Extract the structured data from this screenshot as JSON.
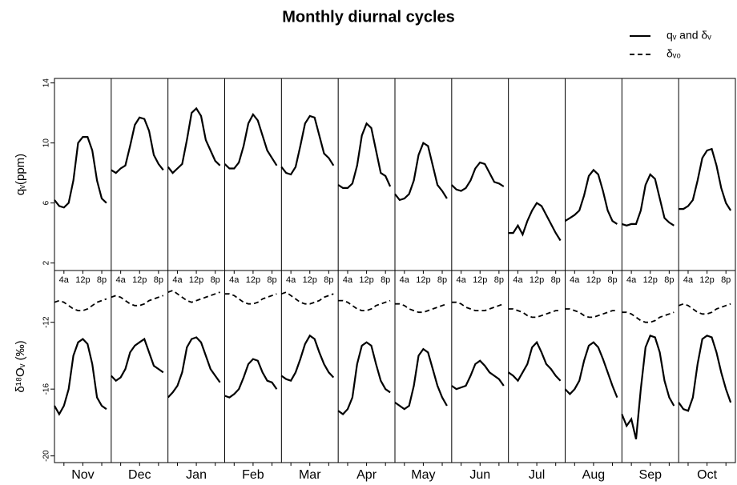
{
  "chart_data": {
    "type": "line",
    "title": "Monthly diurnal cycles",
    "legend": [
      "qᵥ and δᵥ",
      "δᵥ₀"
    ],
    "top_ylabel": "qᵥ(ppm)",
    "bottom_ylabel": "δ¹⁸Oᵥ (‰)",
    "x": [
      0,
      2,
      4,
      6,
      8,
      10,
      12,
      14,
      16,
      18,
      20,
      22
    ],
    "xlim": [
      0,
      24
    ],
    "xticks": [
      {
        "value": 4,
        "label": "4a"
      },
      {
        "value": 12,
        "label": "12p"
      },
      {
        "value": 20,
        "label": "8p"
      }
    ],
    "top_ylim": [
      1.5,
      14.3
    ],
    "top_yticks": [
      2,
      6,
      10,
      14
    ],
    "bottom_ylim": [
      -20.4,
      -8.9
    ],
    "bottom_yticks": [
      -20,
      -16,
      -12
    ],
    "color": "#000000",
    "panels": [
      {
        "month": "Nov",
        "qv": [
          6.2,
          5.8,
          5.7,
          6.0,
          7.5,
          10.0,
          10.4,
          10.4,
          9.5,
          7.5,
          6.3,
          6.0
        ],
        "d18O": [
          -17.0,
          -17.5,
          -17.0,
          -16.0,
          -14.0,
          -13.2,
          -13.0,
          -13.3,
          -14.5,
          -16.5,
          -17.0,
          -17.2
        ],
        "d18O_v0": [
          -10.8,
          -10.7,
          -10.8,
          -11.0,
          -11.2,
          -11.3,
          -11.3,
          -11.2,
          -11.0,
          -10.8,
          -10.7,
          -10.6
        ]
      },
      {
        "month": "Dec",
        "qv": [
          8.2,
          8.0,
          8.3,
          8.5,
          9.8,
          11.2,
          11.7,
          11.6,
          10.8,
          9.2,
          8.6,
          8.2
        ],
        "d18O": [
          -15.2,
          -15.5,
          -15.3,
          -14.8,
          -13.8,
          -13.4,
          -13.2,
          -13.0,
          -13.8,
          -14.6,
          -14.8,
          -15.0
        ],
        "d18O_v0": [
          -10.5,
          -10.4,
          -10.5,
          -10.7,
          -10.9,
          -11.0,
          -11.0,
          -10.9,
          -10.7,
          -10.6,
          -10.5,
          -10.4
        ]
      },
      {
        "month": "Jan",
        "qv": [
          8.4,
          8.0,
          8.3,
          8.6,
          10.2,
          12.0,
          12.3,
          11.8,
          10.2,
          9.5,
          8.8,
          8.5
        ],
        "d18O": [
          -16.5,
          -16.2,
          -15.8,
          -15.0,
          -13.5,
          -13.0,
          -12.9,
          -13.2,
          -14.0,
          -14.8,
          -15.2,
          -15.6
        ],
        "d18O_v0": [
          -10.2,
          -10.1,
          -10.3,
          -10.5,
          -10.7,
          -10.8,
          -10.7,
          -10.6,
          -10.5,
          -10.4,
          -10.3,
          -10.2
        ]
      },
      {
        "month": "Feb",
        "qv": [
          8.6,
          8.3,
          8.3,
          8.7,
          9.8,
          11.3,
          11.9,
          11.5,
          10.5,
          9.5,
          9.0,
          8.5
        ],
        "d18O": [
          -16.4,
          -16.5,
          -16.3,
          -16.0,
          -15.3,
          -14.5,
          -14.2,
          -14.3,
          -15.0,
          -15.5,
          -15.6,
          -16.0
        ],
        "d18O_v0": [
          -10.3,
          -10.3,
          -10.4,
          -10.6,
          -10.8,
          -10.9,
          -10.9,
          -10.8,
          -10.6,
          -10.5,
          -10.4,
          -10.3
        ]
      },
      {
        "month": "Mar",
        "qv": [
          8.4,
          8.0,
          7.9,
          8.4,
          9.8,
          11.3,
          11.8,
          11.7,
          10.5,
          9.3,
          9.0,
          8.5
        ],
        "d18O": [
          -15.2,
          -15.4,
          -15.5,
          -15.0,
          -14.2,
          -13.3,
          -12.8,
          -13.0,
          -13.8,
          -14.5,
          -15.0,
          -15.3
        ],
        "d18O_v0": [
          -10.3,
          -10.2,
          -10.4,
          -10.6,
          -10.8,
          -10.9,
          -10.9,
          -10.8,
          -10.7,
          -10.5,
          -10.4,
          -10.3
        ]
      },
      {
        "month": "Apr",
        "qv": [
          7.2,
          7.0,
          7.0,
          7.3,
          8.5,
          10.5,
          11.3,
          11.0,
          9.5,
          8.0,
          7.8,
          7.1
        ],
        "d18O": [
          -17.3,
          -17.5,
          -17.2,
          -16.5,
          -14.5,
          -13.4,
          -13.2,
          -13.4,
          -14.5,
          -15.5,
          -16.0,
          -16.2
        ],
        "d18O_v0": [
          -10.7,
          -10.7,
          -10.8,
          -11.0,
          -11.2,
          -11.3,
          -11.3,
          -11.2,
          -11.0,
          -10.9,
          -10.8,
          -10.7
        ]
      },
      {
        "month": "May",
        "qv": [
          6.6,
          6.2,
          6.3,
          6.6,
          7.5,
          9.2,
          10.0,
          9.8,
          8.5,
          7.2,
          6.8,
          6.3
        ],
        "d18O": [
          -16.8,
          -17.0,
          -17.2,
          -17.0,
          -15.8,
          -14.0,
          -13.6,
          -13.8,
          -14.8,
          -15.8,
          -16.5,
          -17.0
        ],
        "d18O_v0": [
          -10.9,
          -10.9,
          -11.0,
          -11.2,
          -11.3,
          -11.4,
          -11.4,
          -11.3,
          -11.2,
          -11.1,
          -11.0,
          -10.9
        ]
      },
      {
        "month": "Jun",
        "qv": [
          7.2,
          6.9,
          6.8,
          7.0,
          7.5,
          8.3,
          8.7,
          8.6,
          8.0,
          7.4,
          7.3,
          7.1
        ],
        "d18O": [
          -15.8,
          -16.0,
          -15.9,
          -15.8,
          -15.2,
          -14.5,
          -14.3,
          -14.6,
          -15.0,
          -15.2,
          -15.4,
          -15.8
        ],
        "d18O_v0": [
          -10.8,
          -10.8,
          -10.9,
          -11.1,
          -11.2,
          -11.3,
          -11.3,
          -11.3,
          -11.2,
          -11.1,
          -11.0,
          -10.9
        ]
      },
      {
        "month": "Jul",
        "qv": [
          4.0,
          4.0,
          4.5,
          3.9,
          4.8,
          5.5,
          6.0,
          5.8,
          5.2,
          4.6,
          4.0,
          3.5
        ],
        "d18O": [
          -15.0,
          -15.2,
          -15.5,
          -15.0,
          -14.5,
          -13.5,
          -13.2,
          -13.8,
          -14.5,
          -14.8,
          -15.2,
          -15.5
        ],
        "d18O_v0": [
          -11.2,
          -11.2,
          -11.3,
          -11.4,
          -11.6,
          -11.7,
          -11.7,
          -11.6,
          -11.5,
          -11.4,
          -11.3,
          -11.3
        ]
      },
      {
        "month": "Aug",
        "qv": [
          4.8,
          5.0,
          5.2,
          5.5,
          6.5,
          7.8,
          8.2,
          7.9,
          6.8,
          5.5,
          4.8,
          4.6
        ],
        "d18O": [
          -16.0,
          -16.3,
          -16.0,
          -15.5,
          -14.3,
          -13.4,
          -13.2,
          -13.5,
          -14.2,
          -15.0,
          -15.8,
          -16.5
        ],
        "d18O_v0": [
          -11.2,
          -11.2,
          -11.3,
          -11.4,
          -11.6,
          -11.7,
          -11.7,
          -11.6,
          -11.5,
          -11.4,
          -11.3,
          -11.3
        ]
      },
      {
        "month": "Sep",
        "qv": [
          4.6,
          4.5,
          4.6,
          4.6,
          5.5,
          7.2,
          7.9,
          7.6,
          6.3,
          5.0,
          4.7,
          4.5
        ],
        "d18O": [
          -17.5,
          -18.2,
          -17.8,
          -19.0,
          -16.0,
          -13.5,
          -12.8,
          -12.9,
          -13.8,
          -15.5,
          -16.5,
          -17.0
        ],
        "d18O_v0": [
          -11.4,
          -11.4,
          -11.5,
          -11.7,
          -11.9,
          -12.0,
          -12.0,
          -11.9,
          -11.7,
          -11.6,
          -11.5,
          -11.4
        ]
      },
      {
        "month": "Oct",
        "qv": [
          5.6,
          5.6,
          5.8,
          6.2,
          7.5,
          9.0,
          9.5,
          9.6,
          8.5,
          7.0,
          6.0,
          5.5
        ],
        "d18O": [
          -16.8,
          -17.2,
          -17.3,
          -16.5,
          -14.5,
          -13.0,
          -12.8,
          -12.9,
          -13.8,
          -15.0,
          -16.0,
          -16.8
        ],
        "d18O_v0": [
          -11.0,
          -10.9,
          -11.0,
          -11.2,
          -11.4,
          -11.5,
          -11.5,
          -11.4,
          -11.2,
          -11.1,
          -11.0,
          -10.9
        ]
      }
    ]
  }
}
